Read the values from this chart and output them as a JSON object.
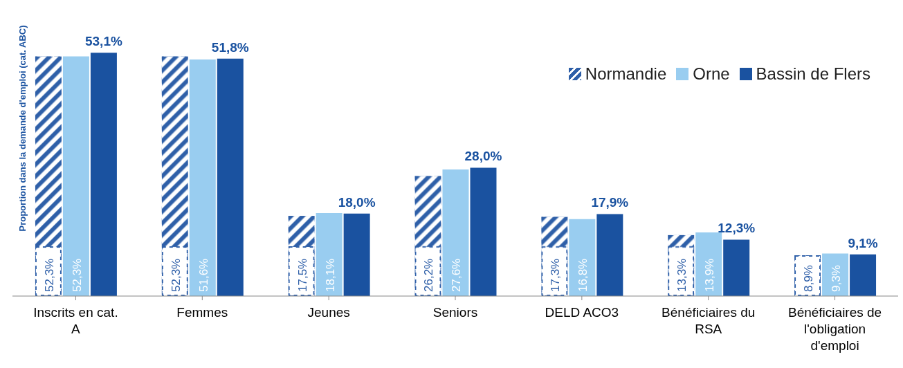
{
  "chart_data": {
    "type": "bar",
    "ylabel": "Proportion dans la demande d'emploi (cat. ABC)",
    "categories": [
      "Inscrits en cat. A",
      "Femmes",
      "Jeunes",
      "Seniors",
      "DELD ACO3",
      "Bénéficiaires du RSA",
      "Bénéficiaires de l'obligation d'emploi"
    ],
    "legend": "top right",
    "series": [
      {
        "name": "Normandie",
        "color": "#2e5fa8",
        "values": [
          52.3,
          52.3,
          17.5,
          26.2,
          17.3,
          13.3,
          8.9
        ],
        "value_labels": [
          "52,3%",
          "52,3%",
          "17,5%",
          "26,2%",
          "17,3%",
          "13,3%",
          "8,9%"
        ]
      },
      {
        "name": "Orne",
        "color": "#99cdf0",
        "values": [
          52.3,
          51.6,
          18.1,
          27.6,
          16.8,
          13.9,
          9.3
        ],
        "value_labels": [
          "52,3%",
          "51,6%",
          "18,1%",
          "27,6%",
          "16,8%",
          "13,9%",
          "9,3%"
        ]
      },
      {
        "name": "Bassin de Flers",
        "color": "#1a52a0",
        "values": [
          53.1,
          51.8,
          18.0,
          28.0,
          17.9,
          12.3,
          9.1
        ],
        "value_labels": [
          "53,1%",
          "51,8%",
          "18,0%",
          "28,0%",
          "17,9%",
          "12,3%",
          "9,1%"
        ]
      }
    ]
  }
}
